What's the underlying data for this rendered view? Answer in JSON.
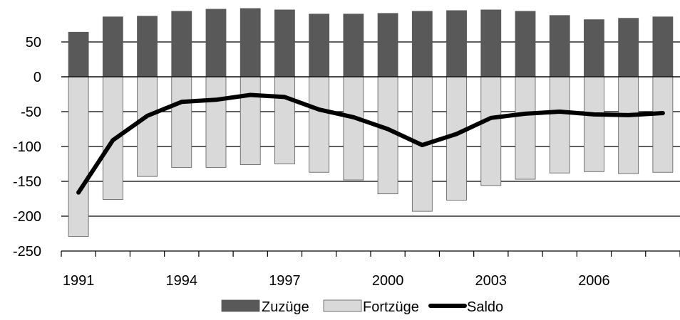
{
  "chart_data": {
    "type": "bar",
    "title": "",
    "xlabel": "",
    "ylabel": "",
    "x": [
      1991,
      1992,
      1993,
      1994,
      1995,
      1996,
      1997,
      1998,
      1999,
      2000,
      2001,
      2002,
      2003,
      2004,
      2005,
      2006,
      2007,
      2008
    ],
    "x_tick_labels": [
      "1991",
      "1994",
      "1997",
      "2000",
      "2003",
      "2006"
    ],
    "ylim": [
      -250,
      100
    ],
    "y_ticks": [
      50,
      0,
      -50,
      -100,
      -150,
      -200,
      -250
    ],
    "grid": "horizontal",
    "legend_position": "bottom",
    "series": [
      {
        "name": "Zuzüge",
        "type": "bar",
        "color": "#595959",
        "values": [
          64,
          86,
          87,
          94,
          97,
          98,
          96,
          90,
          90,
          91,
          94,
          95,
          96,
          94,
          88,
          82,
          84,
          86
        ]
      },
      {
        "name": "Fortzüge",
        "type": "bar",
        "color": "#d9d9d9",
        "values": [
          -229,
          -176,
          -143,
          -130,
          -130,
          -126,
          -125,
          -137,
          -148,
          -168,
          -193,
          -177,
          -156,
          -147,
          -138,
          -136,
          -139,
          -137
        ]
      },
      {
        "name": "Saldo",
        "type": "line",
        "color": "#000000",
        "values": [
          -166,
          -91,
          -56,
          -36,
          -33,
          -26,
          -29,
          -47,
          -58,
          -75,
          -98,
          -82,
          -59,
          -53,
          -50,
          -54,
          -55,
          -52
        ]
      }
    ]
  }
}
